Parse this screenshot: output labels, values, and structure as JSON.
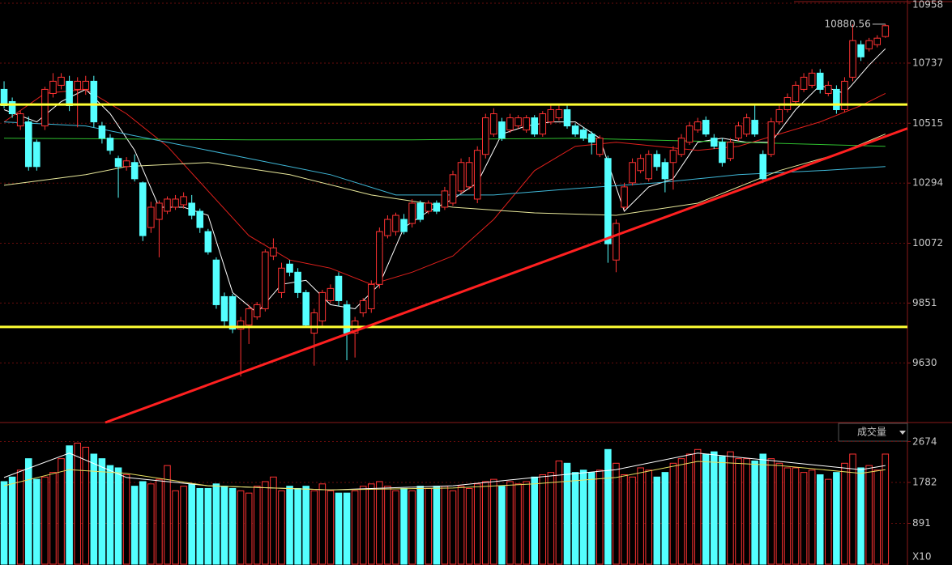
{
  "chart_data": [
    {
      "type": "candlestick",
      "xlim": [
        -0.5,
        110.7
      ],
      "ylim": [
        9410,
        10970
      ],
      "yticks": [
        9630,
        9851,
        10072,
        10294,
        10515,
        10737,
        10958
      ],
      "grid": true,
      "up_color": "#ff3232",
      "down_color": "#54ffff",
      "open": [
        10640,
        10595,
        10505,
        10520,
        10445,
        10505,
        10625,
        10655,
        10670,
        10640,
        10640,
        10670,
        10505,
        10460,
        10385,
        10355,
        10370,
        10295,
        10130,
        10160,
        10190,
        10205,
        10214,
        10220,
        10190,
        10115,
        10010,
        9875,
        9875,
        9755,
        9770,
        9800,
        9830,
        10025,
        9890,
        9995,
        9965,
        9890,
        9740,
        9785,
        9860,
        9950,
        9845,
        9740,
        9815,
        9830,
        9920,
        10100,
        10115,
        10160,
        10145,
        10220,
        10190,
        10220,
        10205,
        10220,
        10265,
        10280,
        10235,
        10400,
        10475,
        10520,
        10490,
        10505,
        10490,
        10535,
        10475,
        10520,
        10535,
        10565,
        10505,
        10490,
        10475,
        10400,
        10385,
        10010,
        10205,
        10295,
        10340,
        10310,
        10400,
        10370,
        10370,
        10400,
        10445,
        10490,
        10526,
        10460,
        10445,
        10385,
        10460,
        10475,
        10526,
        10400,
        10400,
        10520,
        10565,
        10595,
        10640,
        10655,
        10700,
        10625,
        10640,
        10565,
        10685,
        10805,
        10790,
        10805,
        10835
      ],
      "high": [
        10670,
        10610,
        10560,
        10540,
        10455,
        10650,
        10700,
        10700,
        10690,
        10685,
        10690,
        10690,
        10520,
        10475,
        10395,
        10390,
        10400,
        10300,
        10225,
        10230,
        10245,
        10250,
        10260,
        10250,
        10200,
        10125,
        10020,
        9890,
        9885,
        9800,
        9845,
        9855,
        10050,
        10090,
        10000,
        10010,
        9980,
        9900,
        9830,
        9900,
        9920,
        9965,
        9860,
        9800,
        9870,
        9935,
        10130,
        10175,
        10185,
        10180,
        10235,
        10230,
        10230,
        10230,
        10280,
        10340,
        10385,
        10390,
        10430,
        10550,
        10570,
        10535,
        10550,
        10545,
        10545,
        10545,
        10560,
        10580,
        10580,
        10580,
        10515,
        10500,
        10485,
        10470,
        10395,
        10160,
        10295,
        10385,
        10400,
        10415,
        10415,
        10385,
        10430,
        10475,
        10520,
        10535,
        10540,
        10475,
        10460,
        10460,
        10520,
        10550,
        10580,
        10415,
        10535,
        10580,
        10625,
        10670,
        10700,
        10715,
        10715,
        10670,
        10655,
        10685,
        10880,
        10820,
        10830,
        10840,
        10880.56
      ],
      "low": [
        10570,
        10535,
        10490,
        10340,
        10340,
        10490,
        10610,
        10640,
        10560,
        10500,
        10620,
        10500,
        10440,
        10400,
        10240,
        10340,
        10300,
        10080,
        10110,
        10020,
        10180,
        10195,
        10200,
        10160,
        10110,
        10030,
        9830,
        9765,
        9740,
        9580,
        9700,
        9790,
        9820,
        10010,
        9870,
        9950,
        9870,
        9760,
        9620,
        9760,
        9850,
        9840,
        9640,
        9650,
        9800,
        9815,
        9905,
        10090,
        10100,
        10105,
        10130,
        10150,
        10180,
        10180,
        10195,
        10210,
        10255,
        10270,
        10220,
        10385,
        10465,
        10450,
        10480,
        10495,
        10480,
        10465,
        10465,
        10510,
        10525,
        10495,
        10465,
        10450,
        10400,
        10390,
        10000,
        9965,
        10195,
        10285,
        10330,
        10300,
        10340,
        10260,
        10270,
        10390,
        10435,
        10480,
        10465,
        10420,
        10355,
        10375,
        10450,
        10465,
        10465,
        10295,
        10390,
        10510,
        10555,
        10585,
        10630,
        10645,
        10625,
        10615,
        10550,
        10555,
        10670,
        10745,
        10780,
        10795,
        10830
      ],
      "close": [
        10580,
        10550,
        10550,
        10355,
        10355,
        10640,
        10670,
        10685,
        10580,
        10670,
        10670,
        10520,
        10460,
        10415,
        10355,
        10376,
        10310,
        10100,
        10205,
        10220,
        10235,
        10235,
        10244,
        10175,
        10130,
        10040,
        9845,
        9785,
        9755,
        9785,
        9830,
        9845,
        10040,
        10055,
        9980,
        9965,
        9890,
        9770,
        9815,
        9890,
        9905,
        9860,
        9740,
        9785,
        9860,
        9920,
        10115,
        10160,
        10175,
        10115,
        10220,
        10160,
        10220,
        10190,
        10265,
        10325,
        10370,
        10370,
        10415,
        10535,
        10550,
        10460,
        10535,
        10535,
        10535,
        10475,
        10550,
        10565,
        10565,
        10505,
        10475,
        10460,
        10445,
        10460,
        10070,
        10145,
        10280,
        10370,
        10385,
        10400,
        10355,
        10310,
        10415,
        10460,
        10505,
        10520,
        10475,
        10430,
        10370,
        10445,
        10505,
        10535,
        10475,
        10310,
        10520,
        10565,
        10610,
        10655,
        10685,
        10700,
        10640,
        10655,
        10565,
        10670,
        10820,
        10760,
        10820,
        10829,
        10875
      ],
      "series": [
        {
          "color": "#ffffff",
          "x": [
            0,
            4,
            7,
            10,
            13,
            16,
            19,
            22,
            25,
            28,
            31,
            34,
            37,
            40,
            43,
            46,
            49,
            52,
            55,
            58,
            61,
            64,
            67,
            70,
            73,
            76,
            79,
            82,
            85,
            88,
            91,
            94,
            97,
            100,
            103,
            106,
            108
          ],
          "values": [
            10565,
            10520,
            10595,
            10640,
            10550,
            10415,
            10205,
            10205,
            10175,
            9890,
            9815,
            9920,
            9935,
            9845,
            9830,
            9920,
            10130,
            10190,
            10235,
            10295,
            10475,
            10505,
            10520,
            10520,
            10460,
            10190,
            10280,
            10310,
            10445,
            10460,
            10445,
            10445,
            10565,
            10655,
            10625,
            10730,
            10790
          ]
        },
        {
          "color": "#e0201c",
          "x": [
            0,
            5,
            10,
            15,
            20,
            25,
            30,
            35,
            40,
            45,
            50,
            55,
            60,
            65,
            70,
            75,
            80,
            85,
            90,
            95,
            100,
            105,
            108
          ],
          "values": [
            10520,
            10625,
            10640,
            10550,
            10430,
            10265,
            10100,
            10010,
            9980,
            9920,
            9965,
            10025,
            10160,
            10340,
            10430,
            10445,
            10430,
            10415,
            10430,
            10475,
            10520,
            10580,
            10625
          ]
        },
        {
          "color": "#2fbf2f",
          "x": [
            0,
            30,
            50,
            70,
            90,
            108
          ],
          "values": [
            10460,
            10454,
            10454,
            10460,
            10445,
            10430
          ]
        },
        {
          "color": "#3fb8d8",
          "x": [
            0,
            10,
            20,
            30,
            40,
            48,
            60,
            70,
            80,
            90,
            100,
            108
          ],
          "values": [
            10520,
            10505,
            10445,
            10385,
            10325,
            10250,
            10250,
            10274,
            10295,
            10325,
            10340,
            10355
          ]
        },
        {
          "color": "#e8e89a",
          "x": [
            0,
            10,
            15,
            25,
            35,
            45,
            55,
            65,
            75,
            85,
            95,
            102,
            108
          ],
          "values": [
            10286,
            10325,
            10355,
            10370,
            10325,
            10250,
            10205,
            10184,
            10175,
            10220,
            10340,
            10400,
            10475
          ]
        }
      ],
      "hlines": {
        "color": "#ffff33",
        "values": [
          10584,
          9763
        ]
      },
      "trendline": {
        "color": "#ff2020",
        "x": [
          12.4,
          110.7
        ],
        "values": [
          9410,
          10496
        ]
      }
    },
    {
      "type": "bar",
      "label": "成交量",
      "unit_label": "X10",
      "xlim": [
        -0.5,
        110.7
      ],
      "ylim": [
        0,
        2770
      ],
      "yticks": [
        891,
        1782,
        2674
      ],
      "grid": true,
      "values": [
        1800,
        1900,
        2050,
        2300,
        1850,
        1900,
        2000,
        2300,
        2580,
        2640,
        2550,
        2400,
        2300,
        2150,
        2100,
        1950,
        1700,
        1800,
        1750,
        1850,
        2150,
        1600,
        1700,
        1750,
        1650,
        1650,
        1750,
        1700,
        1650,
        1600,
        1550,
        1700,
        1800,
        1900,
        1600,
        1700,
        1650,
        1700,
        1600,
        1750,
        1600,
        1550,
        1550,
        1600,
        1700,
        1750,
        1800,
        1700,
        1600,
        1650,
        1600,
        1700,
        1650,
        1700,
        1700,
        1600,
        1700,
        1650,
        1750,
        1800,
        1850,
        1700,
        1800,
        1750,
        1800,
        1900,
        1950,
        2000,
        2250,
        2200,
        2000,
        2050,
        2000,
        2050,
        2500,
        2200,
        1950,
        1900,
        2100,
        2050,
        1900,
        2000,
        2200,
        2300,
        2400,
        2500,
        2400,
        2450,
        2350,
        2450,
        2300,
        2300,
        2250,
        2400,
        2300,
        2200,
        2100,
        2100,
        2000,
        2050,
        1950,
        1850,
        2000,
        2200,
        2400,
        2100,
        2150,
        2050,
        2400
      ],
      "series": [
        {
          "color": "#ffffff",
          "x": [
            0,
            8,
            15,
            25,
            40,
            55,
            65,
            75,
            85,
            95,
            105,
            108
          ],
          "values": [
            1890,
            2420,
            1890,
            1710,
            1620,
            1710,
            1890,
            2060,
            2420,
            2240,
            2060,
            2150
          ]
        },
        {
          "color": "#e8e060",
          "x": [
            0,
            8,
            15,
            25,
            40,
            55,
            65,
            75,
            85,
            95,
            105,
            108
          ],
          "values": [
            1710,
            2060,
            1980,
            1710,
            1620,
            1660,
            1750,
            1890,
            2240,
            2150,
            1980,
            2060
          ]
        }
      ]
    }
  ]
}
